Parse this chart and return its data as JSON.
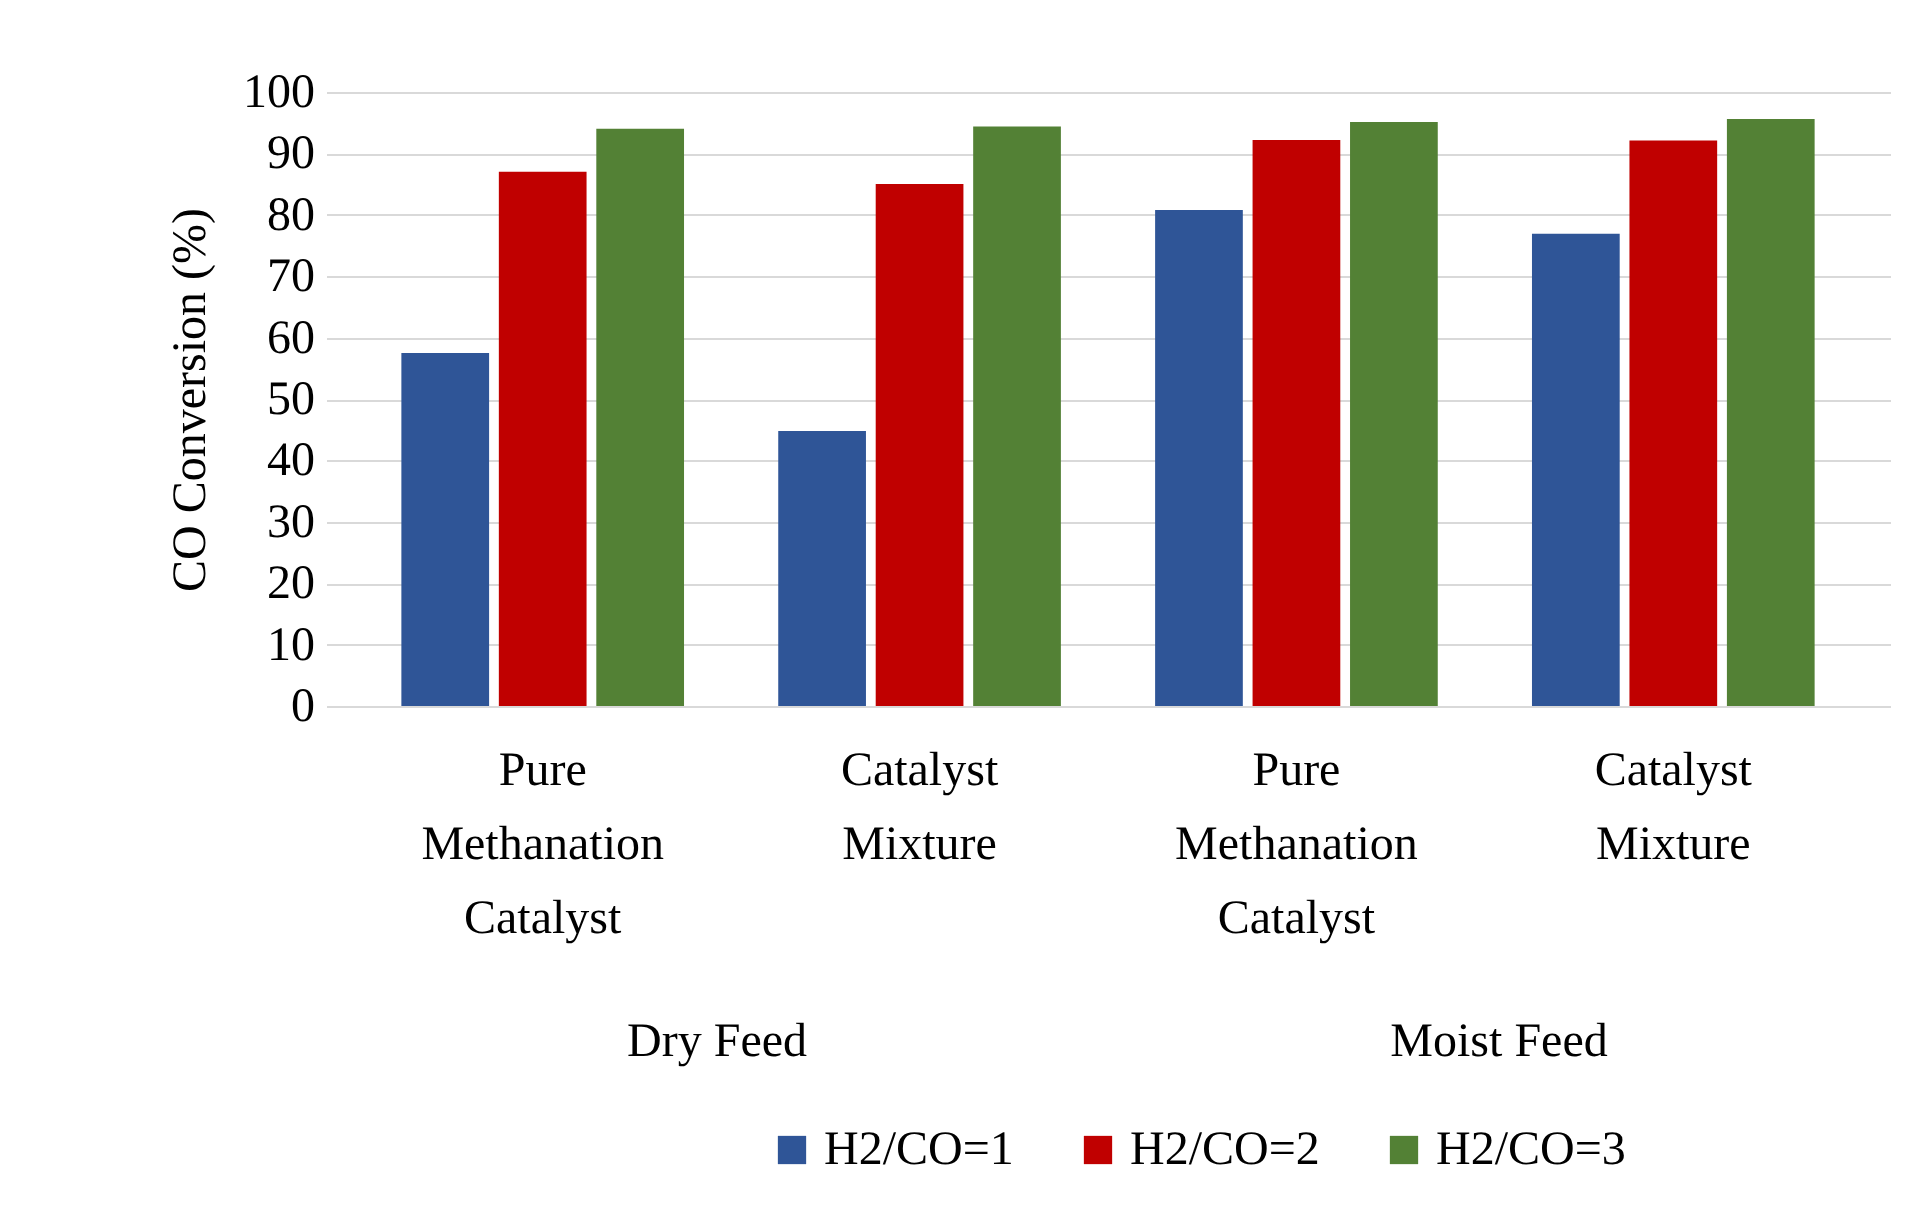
{
  "chart_data": {
    "type": "bar",
    "ylabel": "CO Conversion (%)",
    "categories": [
      "Pure Methanation Catalyst",
      "Catalyst Mixture",
      "Pure Methanation Catalyst",
      "Catalyst Mixture"
    ],
    "series": [
      {
        "name": "H2/CO=1",
        "color": "#2f5597",
        "values": [
          57.5,
          44.8,
          80.8,
          76.9
        ]
      },
      {
        "name": "H2/CO=2",
        "color": "#c00000",
        "values": [
          87.0,
          85.0,
          92.2,
          92.1
        ]
      },
      {
        "name": "H2/CO=3",
        "color": "#538135",
        "values": [
          94.0,
          94.4,
          95.1,
          95.6
        ]
      }
    ],
    "annotations": [
      "Dry Feed",
      "Moist Feed"
    ],
    "ylim": [
      0,
      100
    ],
    "yticks": [
      0,
      10,
      20,
      30,
      40,
      50,
      60,
      70,
      80,
      90,
      100
    ],
    "grid": "y",
    "legend": "bottom"
  }
}
